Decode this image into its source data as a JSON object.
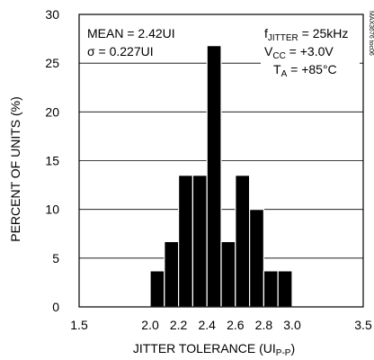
{
  "chart_data": {
    "type": "bar",
    "title": "",
    "xlabel": {
      "main": "JITTER TOLERANCE (UI",
      "sub": "P-P",
      "close": ")"
    },
    "ylabel": "PERCENT OF UNITS (%)",
    "xlim": [
      1.5,
      3.5
    ],
    "ylim": [
      0,
      30
    ],
    "x_ticks": [
      "1.5",
      "2.0",
      "2.2",
      "2.4",
      "2.6",
      "2.8",
      "3.0",
      "3.5"
    ],
    "x_tick_values": [
      1.5,
      2.0,
      2.2,
      2.4,
      2.6,
      2.8,
      3.0,
      3.5
    ],
    "y_ticks": [
      "0",
      "5",
      "10",
      "15",
      "20",
      "25",
      "30"
    ],
    "y_tick_values": [
      0,
      5,
      10,
      15,
      20,
      25,
      30
    ],
    "grid": "horizontal",
    "bin_width": 0.1,
    "bins": [
      {
        "x0": 2.0,
        "value": 3.7
      },
      {
        "x0": 2.1,
        "value": 6.7
      },
      {
        "x0": 2.2,
        "value": 13.5
      },
      {
        "x0": 2.3,
        "value": 13.5
      },
      {
        "x0": 2.4,
        "value": 26.8
      },
      {
        "x0": 2.5,
        "value": 6.7
      },
      {
        "x0": 2.6,
        "value": 13.5
      },
      {
        "x0": 2.7,
        "value": 10.0
      },
      {
        "x0": 2.8,
        "value": 3.7
      },
      {
        "x0": 2.9,
        "value": 3.7
      }
    ],
    "annotations": {
      "mean": "MEAN = 2.42UI",
      "sigma_symbol": "σ",
      "sigma": " = 0.227UI",
      "fjitter": {
        "main": "f",
        "sub": "JITTER",
        "rest": " = 25kHz"
      },
      "vcc": {
        "main": "V",
        "sub": "CC",
        "rest": " = +3.0V"
      },
      "ta": {
        "main": "T",
        "sub": "A",
        "rest": " = +85°C"
      }
    },
    "side_code": "MAX3676 toc06"
  }
}
